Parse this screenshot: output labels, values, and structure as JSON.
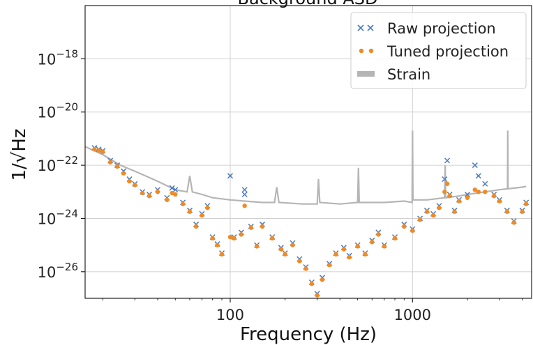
{
  "chart_data": {
    "type": "scatter",
    "title": "Background ASD",
    "xlabel": "Frequency (Hz)",
    "ylabel": "1/√Hz",
    "xscale": "log",
    "yscale": "log",
    "xlim": [
      16,
      4500
    ],
    "ylim": [
      1e-27,
      1e-16
    ],
    "x_ticks": [
      {
        "value": 100,
        "label": "100"
      },
      {
        "value": 1000,
        "label": "1000"
      }
    ],
    "y_ticks": [
      {
        "value": 1e-18,
        "base": "10",
        "exp": "−18"
      },
      {
        "value": 1e-20,
        "base": "10",
        "exp": "−20"
      },
      {
        "value": 1e-22,
        "base": "10",
        "exp": "−22"
      },
      {
        "value": 1e-24,
        "base": "10",
        "exp": "−24"
      },
      {
        "value": 1e-26,
        "base": "10",
        "exp": "−26"
      }
    ],
    "grid": true,
    "legend_position": "top-right",
    "colors": {
      "raw": "#4c7bbf",
      "tuned": "#f08a24",
      "strain": "#b5b5b5"
    },
    "series": [
      {
        "name": "Raw projection",
        "marker": "x",
        "points": [
          [
            18,
            4.5e-22
          ],
          [
            19,
            4e-22
          ],
          [
            20,
            3.5e-22
          ],
          [
            22,
            1.5e-22
          ],
          [
            24,
            1e-22
          ],
          [
            26,
            6e-23
          ],
          [
            28,
            3e-23
          ],
          [
            30,
            2e-23
          ],
          [
            33,
            1e-23
          ],
          [
            36,
            8e-24
          ],
          [
            40,
            1.2e-23
          ],
          [
            45,
            6e-24
          ],
          [
            48,
            1.4e-23
          ],
          [
            50,
            1.2e-23
          ],
          [
            55,
            4e-24
          ],
          [
            60,
            2e-24
          ],
          [
            65,
            6e-25
          ],
          [
            70,
            1.5e-24
          ],
          [
            75,
            3e-24
          ],
          [
            80,
            2e-25
          ],
          [
            85,
            1.1e-25
          ],
          [
            90,
            5e-26
          ],
          [
            100,
            4e-23
          ],
          [
            105,
            2e-25
          ],
          [
            115,
            3e-25
          ],
          [
            120,
            1.2e-23
          ],
          [
            120,
            8e-24
          ],
          [
            130,
            5e-25
          ],
          [
            140,
            1e-25
          ],
          [
            150,
            6e-25
          ],
          [
            170,
            2e-25
          ],
          [
            190,
            8e-26
          ],
          [
            200,
            5e-26
          ],
          [
            220,
            1.2e-25
          ],
          [
            240,
            3e-26
          ],
          [
            260,
            1.5e-26
          ],
          [
            280,
            4e-27
          ],
          [
            300,
            1.5e-27
          ],
          [
            320,
            6e-27
          ],
          [
            350,
            2e-26
          ],
          [
            380,
            5e-26
          ],
          [
            420,
            8e-26
          ],
          [
            450,
            4e-26
          ],
          [
            500,
            1e-25
          ],
          [
            550,
            5e-26
          ],
          [
            600,
            1.5e-25
          ],
          [
            650,
            3e-25
          ],
          [
            700,
            1e-25
          ],
          [
            800,
            2e-25
          ],
          [
            900,
            6e-25
          ],
          [
            1000,
            4e-25
          ],
          [
            1100,
            1e-24
          ],
          [
            1200,
            2e-24
          ],
          [
            1300,
            1.5e-24
          ],
          [
            1400,
            3e-24
          ],
          [
            1500,
            3e-23
          ],
          [
            1550,
            1.5e-22
          ],
          [
            1600,
            8e-24
          ],
          [
            1700,
            2e-24
          ],
          [
            1800,
            5e-24
          ],
          [
            2000,
            8e-24
          ],
          [
            2200,
            1e-22
          ],
          [
            2300,
            4e-23
          ],
          [
            2500,
            2e-23
          ],
          [
            2800,
            8e-24
          ],
          [
            3000,
            5e-24
          ],
          [
            3300,
            2e-24
          ],
          [
            3600,
            8e-25
          ],
          [
            4000,
            2e-24
          ],
          [
            4200,
            4e-24
          ]
        ]
      },
      {
        "name": "Tuned projection",
        "marker": "o",
        "points": [
          [
            18,
            4e-22
          ],
          [
            19,
            3.6e-22
          ],
          [
            20,
            3.2e-22
          ],
          [
            22,
            1.3e-22
          ],
          [
            24,
            9e-23
          ],
          [
            26,
            5e-23
          ],
          [
            28,
            2.5e-23
          ],
          [
            30,
            1.8e-23
          ],
          [
            33,
            9e-24
          ],
          [
            36,
            7e-24
          ],
          [
            40,
            1e-23
          ],
          [
            45,
            5e-24
          ],
          [
            48,
            9e-24
          ],
          [
            50,
            8e-24
          ],
          [
            55,
            3.5e-24
          ],
          [
            60,
            1.8e-24
          ],
          [
            65,
            5e-25
          ],
          [
            70,
            1.3e-24
          ],
          [
            75,
            2.5e-24
          ],
          [
            80,
            1.8e-25
          ],
          [
            85,
            1e-25
          ],
          [
            90,
            4.5e-26
          ],
          [
            100,
            2e-25
          ],
          [
            105,
            1.8e-25
          ],
          [
            115,
            2.5e-25
          ],
          [
            120,
            3e-24
          ],
          [
            130,
            4.5e-25
          ],
          [
            140,
            9e-26
          ],
          [
            150,
            5e-25
          ],
          [
            170,
            1.8e-25
          ],
          [
            190,
            7e-26
          ],
          [
            200,
            4.5e-26
          ],
          [
            220,
            1e-25
          ],
          [
            240,
            2.5e-26
          ],
          [
            260,
            1.3e-26
          ],
          [
            280,
            3.5e-27
          ],
          [
            300,
            1.3e-27
          ],
          [
            320,
            5e-27
          ],
          [
            350,
            1.8e-26
          ],
          [
            380,
            4.5e-26
          ],
          [
            420,
            7e-26
          ],
          [
            450,
            3.5e-26
          ],
          [
            500,
            9e-26
          ],
          [
            550,
            4.5e-26
          ],
          [
            600,
            1.3e-25
          ],
          [
            650,
            2.5e-25
          ],
          [
            700,
            9e-26
          ],
          [
            800,
            1.8e-25
          ],
          [
            900,
            5e-25
          ],
          [
            1000,
            3.5e-25
          ],
          [
            1100,
            9e-25
          ],
          [
            1200,
            1.8e-24
          ],
          [
            1300,
            1.3e-24
          ],
          [
            1400,
            2.5e-24
          ],
          [
            1500,
            1e-23
          ],
          [
            1550,
            2e-23
          ],
          [
            1600,
            7e-24
          ],
          [
            1700,
            1.8e-24
          ],
          [
            1800,
            4.5e-24
          ],
          [
            2000,
            6e-24
          ],
          [
            2200,
            1.2e-23
          ],
          [
            2300,
            1e-23
          ],
          [
            2500,
            1e-23
          ],
          [
            2800,
            7e-24
          ],
          [
            3000,
            4.5e-24
          ],
          [
            3300,
            1.8e-24
          ],
          [
            3600,
            7e-25
          ],
          [
            4000,
            1.8e-24
          ],
          [
            4200,
            3.5e-24
          ]
        ]
      },
      {
        "name": "Strain",
        "marker": "line",
        "points": [
          [
            16,
            5e-22
          ],
          [
            20,
            2.5e-22
          ],
          [
            25,
            1e-22
          ],
          [
            30,
            6e-23
          ],
          [
            40,
            2.5e-23
          ],
          [
            50,
            1.2e-23
          ],
          [
            58,
            1e-23
          ],
          [
            60,
            4e-23
          ],
          [
            62,
            1e-23
          ],
          [
            70,
            8e-24
          ],
          [
            80,
            6e-24
          ],
          [
            100,
            5e-24
          ],
          [
            120,
            4.5e-24
          ],
          [
            150,
            4e-24
          ],
          [
            175,
            4e-24
          ],
          [
            180,
            1.5e-23
          ],
          [
            185,
            4e-24
          ],
          [
            250,
            3.5e-24
          ],
          [
            300,
            3.5e-24
          ],
          [
            305,
            3e-23
          ],
          [
            310,
            4e-24
          ],
          [
            400,
            3.5e-24
          ],
          [
            500,
            4e-24
          ],
          [
            505,
            8e-23
          ],
          [
            510,
            4e-24
          ],
          [
            700,
            4e-24
          ],
          [
            900,
            4.5e-24
          ],
          [
            995,
            4e-24
          ],
          [
            1000,
            2e-21
          ],
          [
            1005,
            5e-24
          ],
          [
            1200,
            5e-24
          ],
          [
            1500,
            6e-24
          ],
          [
            1510,
            1e-22
          ],
          [
            1520,
            6e-24
          ],
          [
            1800,
            7e-24
          ],
          [
            2000,
            8e-24
          ],
          [
            2500,
            1e-23
          ],
          [
            3000,
            1.2e-23
          ],
          [
            3320,
            1.3e-23
          ],
          [
            3330,
            2e-21
          ],
          [
            3340,
            1.3e-23
          ],
          [
            4000,
            1.5e-23
          ],
          [
            4200,
            1.6e-23
          ]
        ]
      }
    ]
  }
}
